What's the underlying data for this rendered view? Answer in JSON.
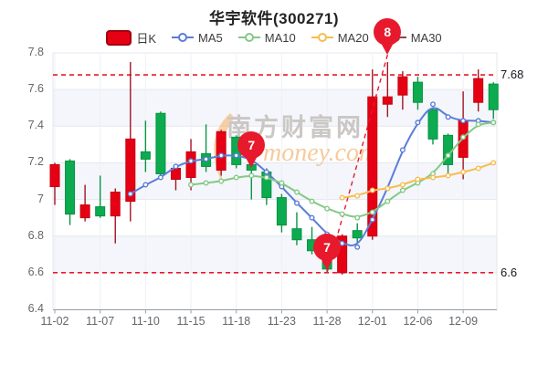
{
  "title": "华宇软件(300271)",
  "legend": {
    "items": [
      {
        "label": "日K",
        "type": "candle",
        "color": "#e60014",
        "border": "#a00010"
      },
      {
        "label": "MA5",
        "type": "line",
        "color": "#5b7dd8"
      },
      {
        "label": "MA10",
        "type": "line",
        "color": "#84c985"
      },
      {
        "label": "MA20",
        "type": "line",
        "color": "#f7bd4f"
      },
      {
        "label": "MA30",
        "type": "line",
        "color": "#8d4653"
      }
    ]
  },
  "watermark": {
    "cn": "南方财富网",
    "en": "money.com"
  },
  "colors": {
    "up_fill": "#e60014",
    "up_stroke": "#c4000f",
    "up_wick": "#a31423",
    "down_fill": "#0cab50",
    "down_stroke": "#089140",
    "down_wick": "#0a9447",
    "ma5": "#5b7dd8",
    "ma10": "#84c985",
    "ma20": "#f7bd4f",
    "ma30": "#8d4653",
    "ref_line": "#e8192c",
    "balloon": "#e8192c",
    "grid": "#e4e7ee",
    "band": "#f4f6fb",
    "axis": "#999fa8",
    "wm_cn": "#cac7c4",
    "wm_en": "rgba(240,158,72,0.55)",
    "wm_swoosh": "rgba(246,180,110,0.6)"
  },
  "chart_data": {
    "type": "candlestick",
    "y_ticks": [
      7.8,
      7.6,
      7.4,
      7.2,
      7,
      6.8,
      6.6,
      6.4
    ],
    "ylim": [
      6.4,
      7.8
    ],
    "x_ticks": [
      {
        "day": 0,
        "label": "11-02"
      },
      {
        "day": 3,
        "label": "11-07"
      },
      {
        "day": 6,
        "label": "11-10"
      },
      {
        "day": 9,
        "label": "11-15"
      },
      {
        "day": 12,
        "label": "11-18"
      },
      {
        "day": 15,
        "label": "11-23"
      },
      {
        "day": 18,
        "label": "11-28"
      },
      {
        "day": 21,
        "label": "12-01"
      },
      {
        "day": 24,
        "label": "12-06"
      },
      {
        "day": 27,
        "label": "12-09"
      }
    ],
    "candles": [
      {
        "d": "11-02",
        "o": 7.07,
        "c": 7.19,
        "h": 7.2,
        "l": 6.97,
        "t": "up"
      },
      {
        "d": "11-03",
        "o": 7.21,
        "c": 6.92,
        "h": 7.22,
        "l": 6.86,
        "t": "down"
      },
      {
        "d": "11-04",
        "o": 6.9,
        "c": 6.97,
        "h": 7.08,
        "l": 6.88,
        "t": "up"
      },
      {
        "d": "11-07",
        "o": 6.96,
        "c": 6.91,
        "h": 7.13,
        "l": 6.9,
        "t": "down"
      },
      {
        "d": "11-08",
        "o": 6.91,
        "c": 7.04,
        "h": 7.06,
        "l": 6.76,
        "t": "up"
      },
      {
        "d": "11-09",
        "o": 6.99,
        "c": 7.33,
        "h": 7.75,
        "l": 6.88,
        "t": "up"
      },
      {
        "d": "11-10",
        "o": 7.26,
        "c": 7.22,
        "h": 7.43,
        "l": 7.15,
        "t": "down"
      },
      {
        "d": "11-11",
        "o": 7.47,
        "c": 7.14,
        "h": 7.48,
        "l": 7.12,
        "t": "down"
      },
      {
        "d": "11-14",
        "o": 7.11,
        "c": 7.17,
        "h": 7.18,
        "l": 7.05,
        "t": "up"
      },
      {
        "d": "11-15",
        "o": 7.12,
        "c": 7.26,
        "h": 7.33,
        "l": 7.05,
        "t": "up"
      },
      {
        "d": "11-16",
        "o": 7.25,
        "c": 7.18,
        "h": 7.41,
        "l": 7.15,
        "t": "down"
      },
      {
        "d": "11-17",
        "o": 7.16,
        "c": 7.37,
        "h": 7.38,
        "l": 7.13,
        "t": "up"
      },
      {
        "d": "11-18",
        "o": 7.34,
        "c": 7.19,
        "h": 7.35,
        "l": 7.17,
        "t": "down"
      },
      {
        "d": "11-21",
        "o": 7.19,
        "c": 7.16,
        "h": 7.2,
        "l": 7.0,
        "t": "down"
      },
      {
        "d": "11-22",
        "o": 7.15,
        "c": 7.01,
        "h": 7.17,
        "l": 6.97,
        "t": "down"
      },
      {
        "d": "11-23",
        "o": 7.01,
        "c": 6.86,
        "h": 7.03,
        "l": 6.82,
        "t": "down"
      },
      {
        "d": "11-24",
        "o": 6.84,
        "c": 6.78,
        "h": 6.93,
        "l": 6.75,
        "t": "down"
      },
      {
        "d": "11-25",
        "o": 6.78,
        "c": 6.72,
        "h": 6.85,
        "l": 6.7,
        "t": "down"
      },
      {
        "d": "11-28",
        "o": 6.7,
        "c": 6.62,
        "h": 6.71,
        "l": 6.6,
        "t": "down"
      },
      {
        "d": "11-29",
        "o": 6.6,
        "c": 6.8,
        "h": 6.81,
        "l": 6.59,
        "t": "up"
      },
      {
        "d": "11-30",
        "o": 6.83,
        "c": 6.79,
        "h": 6.87,
        "l": 6.76,
        "t": "down"
      },
      {
        "d": "12-01",
        "o": 6.8,
        "c": 7.56,
        "h": 7.71,
        "l": 6.78,
        "t": "up"
      },
      {
        "d": "12-02",
        "o": 7.52,
        "c": 7.56,
        "h": 7.75,
        "l": 7.45,
        "t": "up"
      },
      {
        "d": "12-05",
        "o": 7.57,
        "c": 7.67,
        "h": 7.7,
        "l": 7.49,
        "t": "up"
      },
      {
        "d": "12-06",
        "o": 7.64,
        "c": 7.53,
        "h": 7.67,
        "l": 7.49,
        "t": "down"
      },
      {
        "d": "12-07",
        "o": 7.49,
        "c": 7.33,
        "h": 7.5,
        "l": 7.3,
        "t": "down"
      },
      {
        "d": "12-08",
        "o": 7.35,
        "c": 7.19,
        "h": 7.36,
        "l": 7.14,
        "t": "down"
      },
      {
        "d": "12-09",
        "o": 7.23,
        "c": 7.43,
        "h": 7.59,
        "l": 7.11,
        "t": "up"
      },
      {
        "d": "12-12",
        "o": 7.53,
        "c": 7.66,
        "h": 7.71,
        "l": 7.48,
        "t": "up"
      },
      {
        "d": "12-13",
        "o": 7.63,
        "c": 7.49,
        "h": 7.64,
        "l": 7.44,
        "t": "down"
      }
    ],
    "series": [
      {
        "name": "MA5",
        "start": 5,
        "values": [
          7.03,
          7.08,
          7.12,
          7.18,
          7.21,
          7.22,
          7.24,
          7.24,
          7.22,
          7.15,
          7.07,
          6.98,
          6.9,
          6.81,
          6.76,
          6.74,
          6.89,
          7.06,
          7.27,
          7.42,
          7.52,
          7.45,
          7.43,
          7.43,
          7.42
        ]
      },
      {
        "name": "MA10",
        "start": 9,
        "values": [
          7.08,
          7.09,
          7.1,
          7.12,
          7.13,
          7.12,
          7.09,
          7.04,
          6.99,
          6.95,
          6.92,
          6.9,
          6.93,
          6.99,
          7.05,
          7.09,
          7.14,
          7.24,
          7.34,
          7.41,
          7.42
        ]
      },
      {
        "name": "MA20",
        "start": 19,
        "values": [
          7.01,
          7.02,
          7.05,
          7.06,
          7.08,
          7.11,
          7.12,
          7.13,
          7.15,
          7.17,
          7.2
        ]
      },
      {
        "name": "MA30",
        "start": 29,
        "values": []
      }
    ],
    "ref_lines": {
      "upper": 7.68,
      "upper_label": "7.68",
      "lower": 6.6,
      "lower_label": "6.6"
    },
    "markers": [
      {
        "label": "7",
        "day": 13,
        "tip": 7.17
      },
      {
        "label": "7",
        "day": 18,
        "tip": 6.615
      },
      {
        "label": "8",
        "day": 22,
        "tip": 7.79
      }
    ],
    "trend_line": {
      "from_day": 18,
      "from_price": 6.6,
      "to_day": 22,
      "to_price": 7.79
    }
  }
}
